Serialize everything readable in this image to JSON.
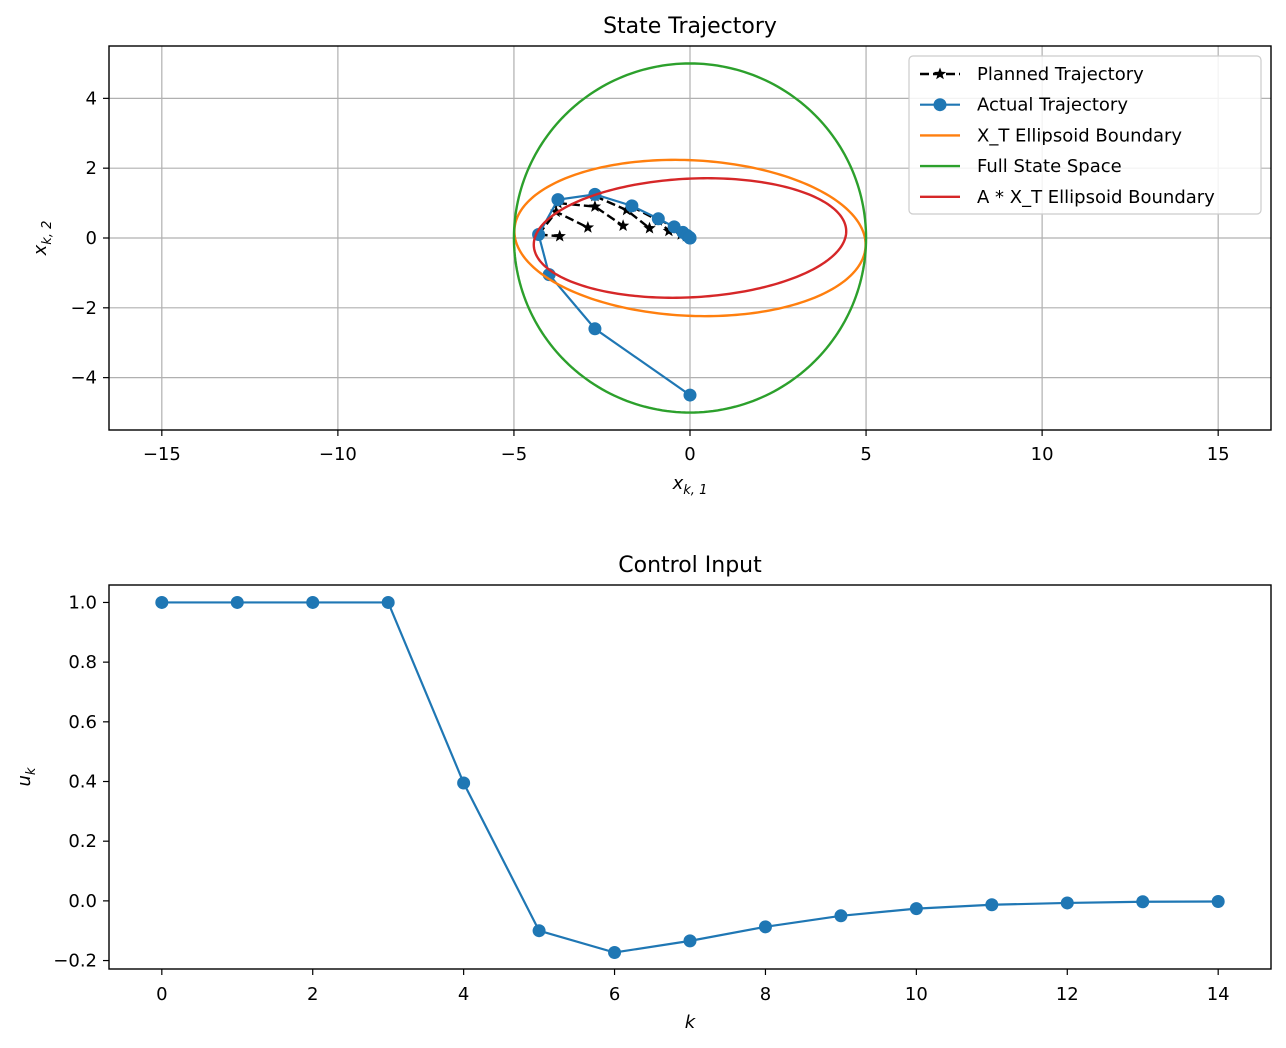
{
  "chart_data": [
    {
      "type": "line",
      "title": "State Trajectory",
      "xlabel": "x_{k,1}",
      "ylabel": "x_{k,2}",
      "xlabel_main": "x",
      "xlabel_sub": "k, 1",
      "ylabel_main": "x",
      "ylabel_sub": "k, 2",
      "xlim": [
        -16.5,
        16.5
      ],
      "ylim": [
        -5.5,
        5.5
      ],
      "xticks": [
        -15,
        -10,
        -5,
        0,
        5,
        10,
        15
      ],
      "xtick_labels": [
        "−15",
        "−10",
        "−5",
        "0",
        "5",
        "10",
        "15"
      ],
      "yticks": [
        -4,
        -2,
        0,
        2,
        4
      ],
      "ytick_labels": [
        "−4",
        "−2",
        "0",
        "2",
        "4"
      ],
      "grid": true,
      "legend_position": "top-right",
      "legend": [
        "Planned Trajectory",
        "Actual Trajectory",
        "X_T Ellipsoid Boundary",
        "Full State Space",
        "A * X_T Ellipsoid Boundary"
      ],
      "series": [
        {
          "name": "Planned Trajectory",
          "color": "#000000",
          "style": "dashed",
          "marker": "star",
          "paths": [
            [
              [
                -4.3,
                0.1
              ],
              [
                -3.7,
                0.05
              ]
            ],
            [
              [
                -4.3,
                0.1
              ],
              [
                -3.8,
                0.75
              ],
              [
                -2.9,
                0.3
              ]
            ],
            [
              [
                -3.75,
                1.0
              ],
              [
                -2.7,
                0.9
              ],
              [
                -1.9,
                0.35
              ]
            ],
            [
              [
                -2.7,
                1.2
              ],
              [
                -1.8,
                0.8
              ],
              [
                -1.15,
                0.28
              ]
            ],
            [
              [
                -1.65,
                0.9
              ],
              [
                -0.9,
                0.5
              ],
              [
                -0.6,
                0.2
              ]
            ],
            [
              [
                -0.9,
                0.55
              ],
              [
                -0.45,
                0.3
              ],
              [
                -0.25,
                0.1
              ]
            ],
            [
              [
                -0.45,
                0.3
              ],
              [
                -0.2,
                0.15
              ],
              [
                -0.1,
                0.05
              ]
            ]
          ]
        },
        {
          "name": "Actual Trajectory",
          "color": "#1f77b4",
          "style": "solid",
          "marker": "circle",
          "points": [
            [
              0,
              -4.5
            ],
            [
              -2.7,
              -2.6
            ],
            [
              -4.0,
              -1.05
            ],
            [
              -4.3,
              0.1
            ],
            [
              -3.75,
              1.1
            ],
            [
              -2.7,
              1.25
            ],
            [
              -1.65,
              0.92
            ],
            [
              -0.9,
              0.55
            ],
            [
              -0.45,
              0.32
            ],
            [
              -0.2,
              0.16
            ],
            [
              -0.08,
              0.07
            ],
            [
              -0.03,
              0.03
            ],
            [
              -0.01,
              0.01
            ],
            [
              0,
              0
            ],
            [
              0,
              0
            ]
          ]
        },
        {
          "name": "X_T Ellipsoid Boundary",
          "color": "#ff7f0e",
          "ellipse": {
            "cx": 0,
            "cy": 0,
            "rx": 4.9917,
            "ry": 2.228,
            "angle_deg": -2.77
          }
        },
        {
          "name": "Full State Space",
          "color": "#2ca02c",
          "circle": {
            "cx": 0,
            "cy": 0,
            "r": 5
          }
        },
        {
          "name": "A * X_T Ellipsoid Boundary",
          "color": "#d62728",
          "ellipse": {
            "cx": 0,
            "cy": 0,
            "rx": 4.4412,
            "ry": 1.6997,
            "angle_deg": 2.87
          }
        }
      ]
    },
    {
      "type": "line",
      "title": "Control Input",
      "xlabel": "k",
      "ylabel": "u_k",
      "xlabel_main": "k",
      "ylabel_main": "u",
      "ylabel_sub": "k",
      "xlim": [
        -0.7,
        14.7
      ],
      "ylim": [
        -0.2283,
        1.0585
      ],
      "xticks": [
        0,
        2,
        4,
        6,
        8,
        10,
        12,
        14
      ],
      "xtick_labels": [
        "0",
        "2",
        "4",
        "6",
        "8",
        "10",
        "12",
        "14"
      ],
      "yticks": [
        -0.2,
        0.0,
        0.2,
        0.4,
        0.6,
        0.8,
        1.0
      ],
      "ytick_labels": [
        "−0.2",
        "0.0",
        "0.2",
        "0.4",
        "0.6",
        "0.8",
        "1.0"
      ],
      "grid": false,
      "series": [
        {
          "color": "#1f77b4",
          "marker": "circle",
          "x": [
            0,
            1,
            2,
            3,
            4,
            5,
            6,
            7,
            8,
            9,
            10,
            11,
            12,
            13,
            14
          ],
          "y": [
            1.0,
            1.0,
            1.0,
            1.0,
            0.395,
            -0.1,
            -0.173,
            -0.134,
            -0.087,
            -0.05,
            -0.026,
            -0.013,
            -0.007,
            -0.003,
            -0.002
          ]
        }
      ]
    }
  ]
}
